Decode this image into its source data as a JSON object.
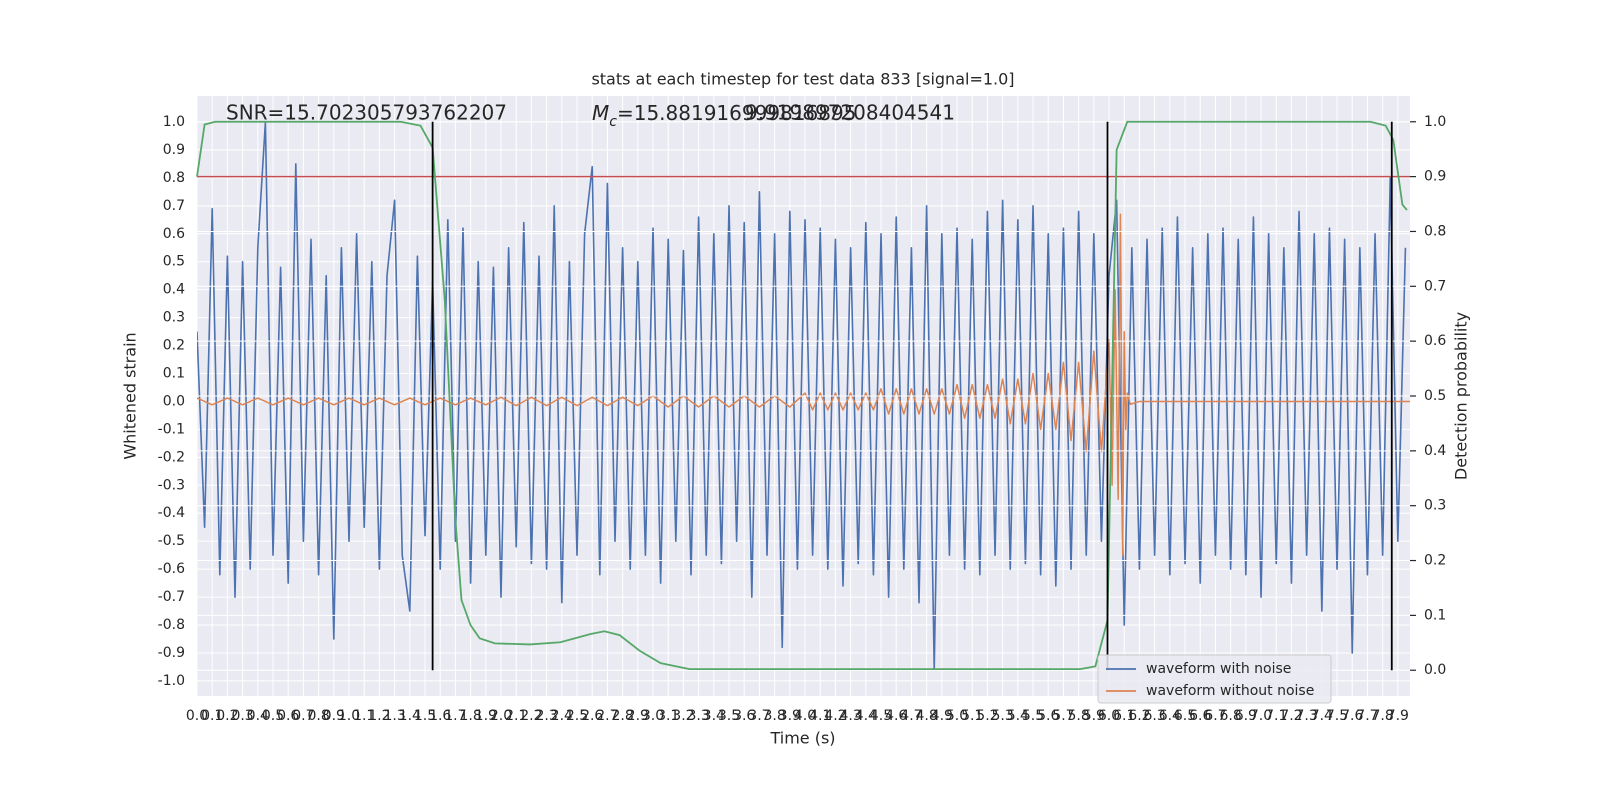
{
  "chart_data": {
    "type": "line",
    "title": "stats at each timestep for test data 833 [signal=1.0]",
    "xlabel": "Time (s)",
    "ylabel": "Whitened strain",
    "y2label": "Detection probability",
    "xlim": [
      0,
      7.98
    ],
    "ylim": [
      -1.054,
      1.093
    ],
    "y2lim": [
      -0.047,
      1.047
    ],
    "xticks": [
      {
        "value": 0,
        "label": "0.0"
      },
      0.1,
      0.2,
      0.3,
      0.4,
      0.5,
      0.6,
      0.7,
      0.8,
      0.9,
      {
        "value": 1,
        "label": "1.0"
      },
      1.1,
      1.2,
      1.3,
      1.4,
      1.5,
      1.6,
      1.7,
      1.8,
      1.9,
      {
        "value": 2,
        "label": "2.0"
      },
      2.1,
      2.2,
      2.3,
      2.4,
      2.5,
      2.6,
      2.7,
      2.8,
      2.9,
      {
        "value": 3,
        "label": "3.0"
      },
      3.1,
      3.2,
      3.3,
      3.4,
      3.5,
      3.6,
      3.7,
      3.8,
      3.9,
      {
        "value": 4,
        "label": "4.0"
      },
      4.1,
      4.2,
      4.3,
      4.4,
      4.5,
      4.6,
      4.7,
      4.8,
      4.9,
      {
        "value": 5,
        "label": "5.0"
      },
      5.1,
      5.2,
      5.3,
      5.4,
      5.5,
      5.6,
      5.7,
      5.8,
      5.9,
      {
        "value": 6,
        "label": "6.0"
      },
      6.1,
      6.2,
      6.3,
      6.4,
      6.5,
      6.6,
      6.7,
      6.8,
      6.9,
      {
        "value": 7,
        "label": "7.0"
      },
      7.1,
      7.2,
      7.3,
      7.4,
      7.5,
      7.6,
      7.7,
      7.8,
      7.9
    ],
    "yticks": [
      {
        "value": -1,
        "label": "-1.0"
      },
      -0.9,
      -0.8,
      -0.7,
      -0.6,
      -0.5,
      -0.4,
      -0.3,
      -0.2,
      -0.1,
      {
        "value": 0,
        "label": "0.0"
      },
      0.1,
      0.2,
      0.3,
      0.4,
      0.5,
      0.6,
      0.7,
      0.8,
      0.9,
      {
        "value": 1,
        "label": "1.0"
      }
    ],
    "y2ticks": [
      {
        "value": 0,
        "label": "0.0"
      },
      0.1,
      0.2,
      0.3,
      0.4,
      0.5,
      0.6,
      0.7,
      0.8,
      0.9,
      {
        "value": 1,
        "label": "1.0"
      }
    ],
    "grid": true,
    "legend": "lower right",
    "series": [
      {
        "name": "waveform with noise",
        "color": "#4c72b0",
        "x": [
          0,
          0.05,
          0.1,
          0.15,
          0.2,
          0.25,
          0.3,
          0.35,
          0.4,
          0.45,
          0.5,
          0.55,
          0.6,
          0.65,
          0.7,
          0.75,
          0.8,
          0.85,
          0.9,
          0.95,
          1,
          1.05,
          1.1,
          1.15,
          1.2,
          1.25,
          1.3,
          1.35,
          1.4,
          1.45,
          1.5,
          1.55,
          1.6,
          1.65,
          1.7,
          1.75,
          1.8,
          1.85,
          1.9,
          1.95,
          2,
          2.05,
          2.1,
          2.15,
          2.2,
          2.25,
          2.3,
          2.35,
          2.4,
          2.45,
          2.5,
          2.55,
          2.6,
          2.65,
          2.7,
          2.75,
          2.8,
          2.85,
          2.9,
          2.95,
          3,
          3.05,
          3.1,
          3.15,
          3.2,
          3.25,
          3.3,
          3.35,
          3.4,
          3.45,
          3.5,
          3.55,
          3.6,
          3.65,
          3.7,
          3.75,
          3.8,
          3.85,
          3.9,
          3.95,
          4,
          4.05,
          4.1,
          4.15,
          4.2,
          4.25,
          4.3,
          4.35,
          4.4,
          4.45,
          4.5,
          4.55,
          4.6,
          4.65,
          4.7,
          4.75,
          4.8,
          4.85,
          4.9,
          4.95,
          5,
          5.05,
          5.1,
          5.15,
          5.2,
          5.25,
          5.3,
          5.35,
          5.4,
          5.45,
          5.5,
          5.55,
          5.6,
          5.65,
          5.7,
          5.75,
          5.8,
          5.85,
          5.9,
          5.95,
          6,
          6.05,
          6.1,
          6.15,
          6.2,
          6.25,
          6.3,
          6.35,
          6.4,
          6.45,
          6.5,
          6.55,
          6.6,
          6.65,
          6.7,
          6.75,
          6.8,
          6.85,
          6.9,
          6.95,
          7,
          7.05,
          7.1,
          7.15,
          7.2,
          7.25,
          7.3,
          7.35,
          7.4,
          7.45,
          7.5,
          7.55,
          7.6,
          7.65,
          7.7,
          7.75,
          7.8,
          7.85,
          7.9,
          7.95
        ],
        "values": [
          0.25,
          -0.45,
          0.69,
          -0.62,
          0.52,
          -0.7,
          0.5,
          -0.6,
          0.55,
          1.0,
          -0.55,
          0.48,
          -0.65,
          0.85,
          -0.5,
          0.58,
          -0.62,
          0.45,
          -0.85,
          0.55,
          -0.5,
          0.6,
          -0.45,
          0.5,
          -0.6,
          0.45,
          0.72,
          -0.55,
          -0.75,
          0.52,
          -0.48,
          0.43,
          -0.6,
          0.65,
          -0.5,
          0.62,
          -0.65,
          0.5,
          -0.55,
          0.48,
          -0.7,
          0.55,
          -0.52,
          0.64,
          -0.58,
          0.52,
          -0.6,
          0.7,
          -0.72,
          0.5,
          -0.55,
          0.6,
          0.84,
          -0.62,
          0.78,
          -0.5,
          0.55,
          -0.6,
          0.5,
          -0.55,
          0.62,
          -0.65,
          0.58,
          -0.5,
          0.54,
          -0.62,
          0.66,
          -0.55,
          0.6,
          -0.58,
          0.7,
          -0.5,
          0.64,
          -0.7,
          0.75,
          -0.55,
          0.6,
          -0.88,
          0.68,
          -0.6,
          0.65,
          -0.55,
          0.62,
          -0.6,
          0.58,
          -0.66,
          0.55,
          -0.58,
          0.64,
          -0.62,
          0.6,
          -0.7,
          0.66,
          -0.6,
          0.55,
          -0.72,
          0.7,
          -0.96,
          0.6,
          -0.55,
          0.62,
          -0.6,
          0.58,
          -0.62,
          0.68,
          -0.55,
          0.72,
          -0.6,
          0.65,
          -0.58,
          0.7,
          -0.62,
          0.6,
          -0.66,
          0.62,
          -0.6,
          0.68,
          -0.55,
          0.6,
          -0.5,
          0.45,
          0.72,
          -0.8,
          0.55,
          -0.6,
          0.58,
          -0.55,
          0.62,
          -0.62,
          0.66,
          -0.58,
          0.55,
          -0.65,
          0.6,
          -0.55,
          0.62,
          -0.6,
          0.58,
          -0.62,
          0.66,
          -0.7,
          0.6,
          -0.58,
          0.55,
          -0.65,
          0.68,
          -0.55,
          0.6,
          -0.75,
          0.62,
          -0.6,
          0.58,
          -0.9,
          0.55,
          -0.62,
          0.6,
          -0.55,
          0.8,
          -0.5,
          0.55
        ]
      },
      {
        "name": "waveform without noise",
        "color": "#dd8452",
        "x": [
          0,
          0.1,
          0.2,
          0.3,
          0.4,
          0.5,
          0.6,
          0.7,
          0.8,
          0.9,
          1,
          1.1,
          1.2,
          1.3,
          1.4,
          1.5,
          1.6,
          1.7,
          1.8,
          1.9,
          2,
          2.1,
          2.2,
          2.3,
          2.4,
          2.5,
          2.6,
          2.7,
          2.8,
          2.9,
          3,
          3.1,
          3.2,
          3.3,
          3.4,
          3.5,
          3.6,
          3.7,
          3.8,
          3.9,
          4,
          4.05,
          4.1,
          4.15,
          4.2,
          4.25,
          4.3,
          4.35,
          4.4,
          4.45,
          4.5,
          4.55,
          4.6,
          4.65,
          4.7,
          4.75,
          4.8,
          4.85,
          4.9,
          4.95,
          5,
          5.05,
          5.1,
          5.15,
          5.2,
          5.25,
          5.3,
          5.35,
          5.4,
          5.45,
          5.5,
          5.55,
          5.6,
          5.65,
          5.7,
          5.75,
          5.8,
          5.85,
          5.9,
          5.95,
          6,
          6.02,
          6.04,
          6.06,
          6.075,
          6.09,
          6.1,
          6.11,
          6.12,
          6.14,
          6.2,
          7.98
        ],
        "values": [
          0.012,
          -0.012,
          0.012,
          -0.012,
          0.012,
          -0.012,
          0.012,
          -0.012,
          0.012,
          -0.012,
          0.012,
          -0.012,
          0.012,
          -0.012,
          0.012,
          -0.012,
          0.012,
          -0.012,
          0.012,
          -0.012,
          0.015,
          -0.015,
          0.015,
          -0.015,
          0.015,
          -0.015,
          0.015,
          -0.015,
          0.015,
          -0.015,
          0.02,
          -0.02,
          0.02,
          -0.02,
          0.02,
          -0.02,
          0.02,
          -0.02,
          0.02,
          -0.02,
          0.03,
          -0.03,
          0.03,
          -0.03,
          0.03,
          -0.03,
          0.03,
          -0.03,
          0.03,
          -0.03,
          0.045,
          -0.045,
          0.045,
          -0.045,
          0.045,
          -0.045,
          0.045,
          -0.045,
          0.045,
          -0.045,
          0.06,
          -0.06,
          0.06,
          -0.06,
          0.06,
          -0.06,
          0.08,
          -0.08,
          0.08,
          -0.08,
          0.1,
          -0.1,
          0.1,
          -0.1,
          0.14,
          -0.14,
          0.14,
          -0.18,
          0.18,
          -0.18,
          0.22,
          -0.3,
          0.4,
          -0.35,
          0.67,
          -0.55,
          0.25,
          -0.1,
          0.03,
          -0.01,
          0,
          0
        ]
      }
    ],
    "detection_probability": {
      "color": "#55a868",
      "axis": "y2",
      "x": [
        0,
        0.05,
        0.12,
        1.34,
        1.47,
        1.55,
        1.63,
        1.7,
        1.74,
        1.8,
        1.86,
        1.96,
        2.19,
        2.39,
        2.59,
        2.68,
        2.78,
        2.91,
        3.05,
        3.24,
        4.62,
        5.81,
        5.91,
        5.99,
        6.05,
        6.12,
        7.72,
        7.82,
        7.87,
        7.93,
        7.96
      ],
      "values": [
        0.9,
        0.995,
        1.0,
        1.0,
        0.993,
        0.953,
        0.675,
        0.274,
        0.128,
        0.082,
        0.058,
        0.049,
        0.047,
        0.051,
        0.066,
        0.071,
        0.064,
        0.036,
        0.013,
        0.002,
        0.002,
        0.002,
        0.007,
        0.091,
        0.949,
        1.0,
        1.0,
        0.993,
        0.967,
        0.849,
        0.839
      ]
    },
    "threshold": {
      "value": 0.9,
      "axis": "y2",
      "color": "#c44e52"
    },
    "vlines": {
      "x": [
        1.55,
        5.99,
        7.86
      ],
      "range": [
        0,
        1
      ],
      "axis": "y2",
      "color": "#000000"
    },
    "annotations": {
      "snr": "SNR=15.702305793762207",
      "mc_symbol": "M",
      "mc_subscript": "c",
      "mc_value": "=15.881916999816895",
      "extra": "9.919897208404541"
    }
  }
}
